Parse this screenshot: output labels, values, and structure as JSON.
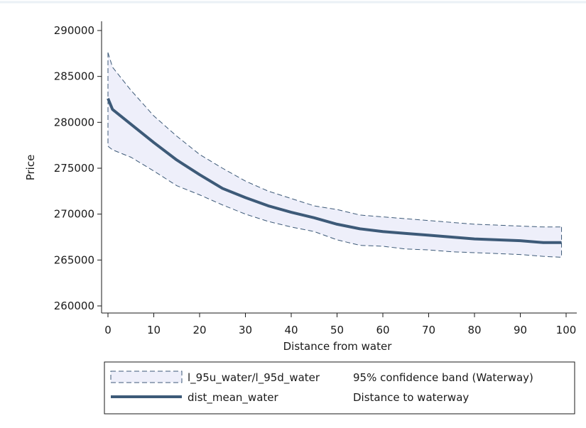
{
  "chart_data": {
    "type": "line",
    "xlabel": "Distance from water",
    "ylabel": "Price",
    "xlim": [
      0,
      100
    ],
    "ylim": [
      260000,
      290000
    ],
    "x_ticks": [
      "0",
      "10",
      "20",
      "30",
      "40",
      "50",
      "60",
      "70",
      "80",
      "90",
      "100"
    ],
    "y_ticks": [
      "260000",
      "265000",
      "270000",
      "275000",
      "280000",
      "285000",
      "290000"
    ],
    "grid": false,
    "legend_position": "bottom",
    "colors": {
      "band_fill": "#eeeffa",
      "band_stroke": "#3d5a78",
      "line": "#3d5a78"
    },
    "series": [
      {
        "name": "l_95u_water/l_95d_water",
        "description": "95% confidence band (Waterway)",
        "style": "band",
        "x": [
          0,
          1,
          5,
          10,
          15,
          20,
          25,
          30,
          35,
          40,
          45,
          50,
          55,
          60,
          65,
          70,
          75,
          80,
          85,
          90,
          95,
          99
        ],
        "upper": [
          287600,
          286000,
          283500,
          280700,
          278500,
          276500,
          275000,
          273600,
          272500,
          271700,
          270900,
          270500,
          269900,
          269700,
          269500,
          269300,
          269100,
          268900,
          268800,
          268700,
          268600,
          268600
        ],
        "lower": [
          277400,
          277000,
          276200,
          274700,
          273100,
          272100,
          271000,
          270000,
          269200,
          268600,
          268100,
          267200,
          266600,
          266500,
          266200,
          266100,
          265900,
          265800,
          265700,
          265600,
          265400,
          265300
        ]
      },
      {
        "name": "dist_mean_water",
        "description": "Distance to waterway",
        "style": "line",
        "x": [
          0,
          1,
          5,
          10,
          15,
          20,
          25,
          30,
          35,
          40,
          45,
          50,
          55,
          60,
          65,
          70,
          75,
          80,
          85,
          90,
          95,
          99
        ],
        "values": [
          282600,
          281400,
          279800,
          277800,
          275900,
          274300,
          272800,
          271800,
          270900,
          270200,
          269600,
          268900,
          268400,
          268100,
          267900,
          267700,
          267500,
          267300,
          267200,
          267100,
          266900,
          266900
        ]
      }
    ]
  }
}
